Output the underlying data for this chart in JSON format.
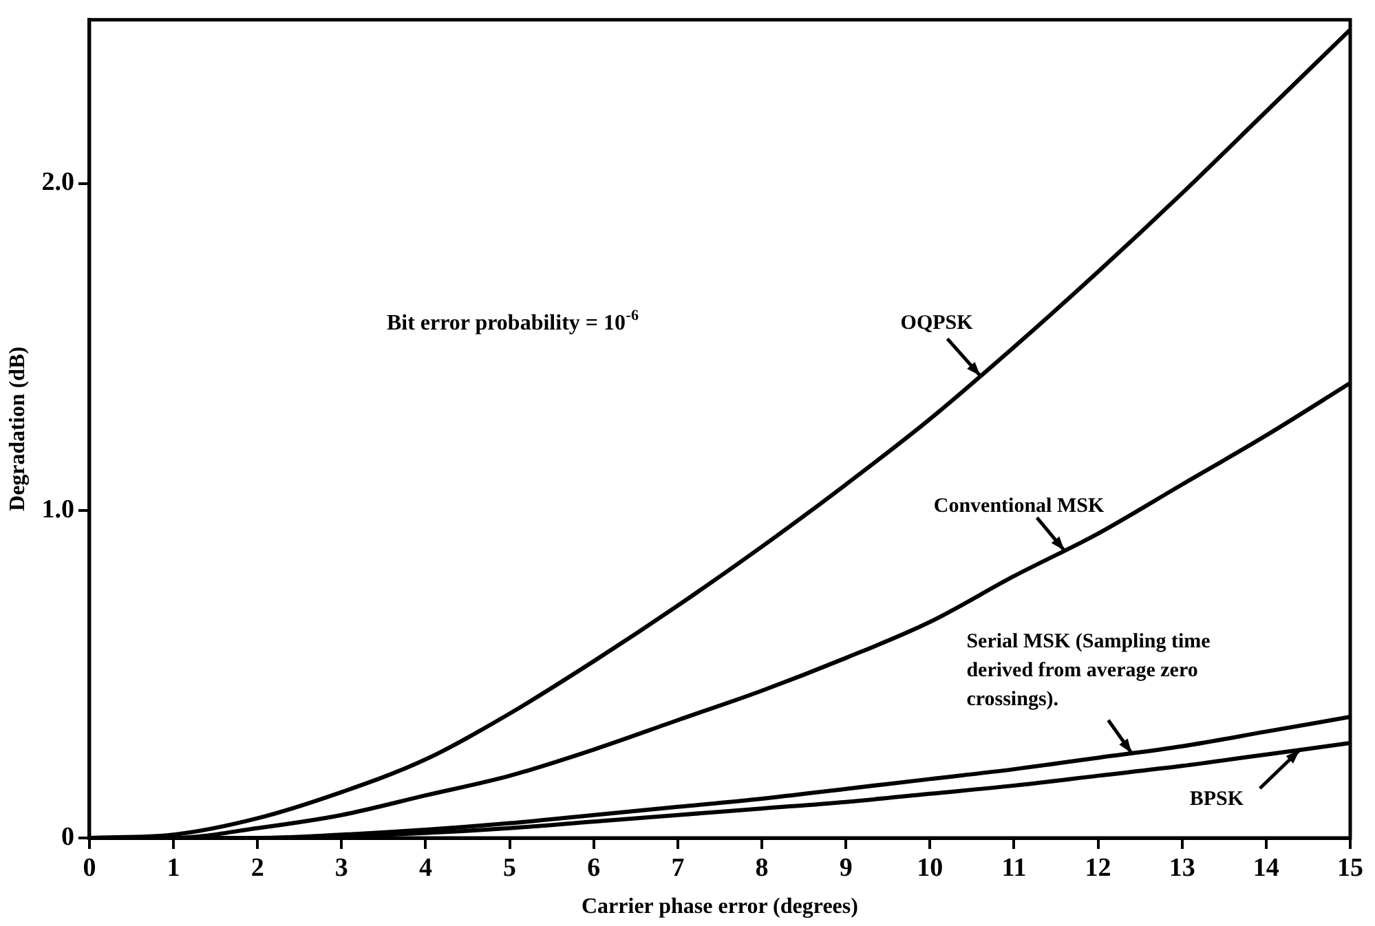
{
  "chart_data": {
    "type": "line",
    "xlabel": "Carrier phase error (degrees)",
    "ylabel": "Degradation (dB)",
    "annotations": [
      "Bit error probability = 10$^{-6}$"
    ],
    "x": [
      0,
      1,
      2,
      3,
      4,
      5,
      6,
      7,
      8,
      9,
      10,
      11,
      12,
      13,
      14,
      15
    ],
    "series": [
      {
        "name": "OQPSK",
        "color": "#000000",
        "values": [
          0,
          0.01,
          0.06,
          0.14,
          0.24,
          0.38,
          0.54,
          0.71,
          0.89,
          1.08,
          1.28,
          1.5,
          1.73,
          1.97,
          2.22,
          2.47
        ]
      },
      {
        "name": "Conventional MSK",
        "color": "#000000",
        "values": [
          0,
          0,
          0.03,
          0.07,
          0.13,
          0.19,
          0.27,
          0.36,
          0.45,
          0.55,
          0.66,
          0.8,
          0.93,
          1.08,
          1.23,
          1.39
        ]
      },
      {
        "name": "Serial MSK (Sampling time derived from average zero crossings).",
        "color": "#000000",
        "values": [
          0,
          0,
          0,
          0.01,
          0.025,
          0.045,
          0.07,
          0.095,
          0.12,
          0.15,
          0.18,
          0.21,
          0.245,
          0.28,
          0.325,
          0.37
        ]
      },
      {
        "name": "BPSK",
        "color": "#000000",
        "values": [
          0,
          0,
          0,
          0.005,
          0.015,
          0.03,
          0.05,
          0.07,
          0.09,
          0.11,
          0.135,
          0.16,
          0.19,
          0.22,
          0.255,
          0.29
        ]
      }
    ],
    "xlim": [
      0,
      15
    ],
    "xticks": [
      0,
      1,
      2,
      3,
      4,
      5,
      6,
      7,
      8,
      9,
      10,
      11,
      12,
      13,
      14,
      15
    ],
    "ylim": [
      0,
      2.5
    ],
    "yticks": [
      0,
      {
        "value": 1,
        "label": "1.0"
      },
      {
        "value": 2,
        "label": "2.0"
      }
    ],
    "grid": false,
    "legend": false,
    "marker": "none",
    "line_style": "solid"
  }
}
